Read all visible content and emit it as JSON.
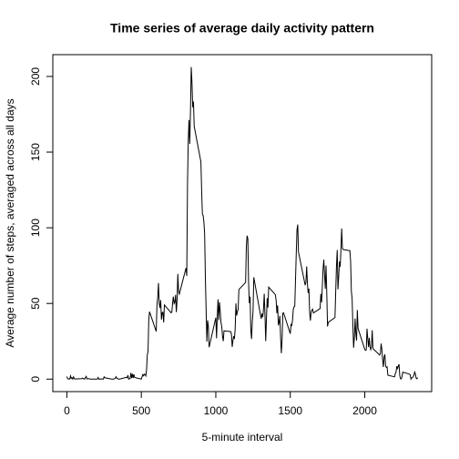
{
  "chart_data": {
    "type": "line",
    "title": "Time series of average daily activity pattern",
    "xlabel": "5-minute interval",
    "ylabel": "Average number of steps, averaged across all days",
    "color": "#000000",
    "xlim": [
      -94.2,
      2449.2
    ],
    "xticks": [
      0,
      500,
      1000,
      1500,
      2000
    ],
    "ylim": [
      -8.25,
      214.4
    ],
    "yticks": [
      0,
      50,
      100,
      150,
      200
    ],
    "x": [
      0,
      5,
      10,
      15,
      20,
      25,
      30,
      35,
      40,
      45,
      50,
      55,
      100,
      105,
      110,
      115,
      120,
      125,
      130,
      135,
      140,
      145,
      150,
      155,
      200,
      205,
      210,
      215,
      220,
      225,
      230,
      235,
      240,
      245,
      250,
      255,
      300,
      305,
      310,
      315,
      320,
      325,
      330,
      335,
      340,
      345,
      350,
      355,
      400,
      405,
      410,
      415,
      420,
      425,
      430,
      435,
      440,
      445,
      450,
      455,
      500,
      505,
      510,
      515,
      520,
      525,
      530,
      535,
      540,
      545,
      550,
      555,
      600,
      605,
      610,
      615,
      620,
      625,
      630,
      635,
      640,
      645,
      650,
      655,
      700,
      705,
      710,
      715,
      720,
      725,
      730,
      735,
      740,
      745,
      750,
      755,
      800,
      805,
      810,
      815,
      820,
      825,
      830,
      835,
      840,
      845,
      850,
      855,
      900,
      905,
      910,
      915,
      920,
      925,
      930,
      935,
      940,
      945,
      950,
      955,
      1000,
      1005,
      1010,
      1015,
      1020,
      1025,
      1030,
      1035,
      1040,
      1045,
      1050,
      1055,
      1100,
      1105,
      1110,
      1115,
      1120,
      1125,
      1130,
      1135,
      1140,
      1145,
      1150,
      1155,
      1200,
      1205,
      1210,
      1215,
      1220,
      1225,
      1230,
      1235,
      1240,
      1245,
      1250,
      1255,
      1300,
      1305,
      1310,
      1315,
      1320,
      1325,
      1330,
      1335,
      1340,
      1345,
      1350,
      1355,
      1400,
      1405,
      1410,
      1415,
      1420,
      1425,
      1430,
      1435,
      1440,
      1445,
      1450,
      1455,
      1500,
      1505,
      1510,
      1515,
      1520,
      1525,
      1530,
      1535,
      1540,
      1545,
      1550,
      1555,
      1600,
      1605,
      1610,
      1615,
      1620,
      1625,
      1630,
      1635,
      1640,
      1645,
      1650,
      1655,
      1700,
      1705,
      1710,
      1715,
      1720,
      1725,
      1730,
      1735,
      1740,
      1745,
      1750,
      1755,
      1800,
      1805,
      1810,
      1815,
      1820,
      1825,
      1830,
      1835,
      1840,
      1845,
      1850,
      1855,
      1900,
      1905,
      1910,
      1915,
      1920,
      1925,
      1930,
      1935,
      1940,
      1945,
      1950,
      1955,
      2000,
      2005,
      2010,
      2015,
      2020,
      2025,
      2030,
      2035,
      2040,
      2045,
      2050,
      2055,
      2100,
      2105,
      2110,
      2115,
      2120,
      2125,
      2130,
      2135,
      2140,
      2145,
      2150,
      2155,
      2200,
      2205,
      2210,
      2215,
      2220,
      2225,
      2230,
      2235,
      2240,
      2245,
      2250,
      2255,
      2300,
      2305,
      2310,
      2315,
      2320,
      2325,
      2330,
      2335,
      2340,
      2345,
      2350,
      2355
    ],
    "values": [
      1.7,
      0.3,
      0.1,
      0.2,
      0.1,
      2.1,
      0.5,
      0.9,
      0,
      1.5,
      0.3,
      0.1,
      0.3,
      0.7,
      0.2,
      0.3,
      0,
      1.1,
      1.8,
      0.2,
      0.2,
      0.4,
      0.3,
      0,
      0,
      0,
      1.1,
      0,
      0,
      0.1,
      0,
      0.2,
      0,
      0,
      1.5,
      0.9,
      0,
      0,
      0,
      0,
      0.2,
      0.6,
      1.6,
      0.6,
      0.5,
      0.1,
      0,
      0,
      1.2,
      0.9,
      2.6,
      0,
      0.3,
      0.4,
      4.1,
      0.7,
      3.5,
      0.8,
      3.1,
      1.1,
      0,
      1.6,
      3.0,
      2.2,
      3.3,
      3,
      2.1,
      6.1,
      16,
      18.3,
      39.5,
      44.5,
      31.5,
      49.3,
      53.8,
      63.5,
      50,
      47.1,
      52.2,
      39.3,
      44,
      44.2,
      37.4,
      49.0,
      43.8,
      44.4,
      50.5,
      54.5,
      49.9,
      50.9,
      55.7,
      44.3,
      52.3,
      69.5,
      57.8,
      56.2,
      73.4,
      68.2,
      129.4,
      157.5,
      171.2,
      155.4,
      177.3,
      206.2,
      195.9,
      179.6,
      183.4,
      167,
      143.5,
      124,
      109.1,
      108.1,
      103.7,
      96,
      66.2,
      45.2,
      24.8,
      38.8,
      35,
      21.1,
      40.6,
      27,
      42.4,
      52.7,
      38.9,
      50.8,
      44.3,
      37.4,
      34.7,
      28.3,
      25.1,
      31.9,
      31.4,
      29.7,
      21.3,
      25.5,
      28.4,
      26.5,
      33.4,
      50.0,
      42.0,
      44.6,
      46.0,
      59.2,
      63.9,
      87.7,
      94.8,
      92.8,
      63.4,
      50.2,
      54.5,
      32.4,
      26.5,
      37.7,
      45.1,
      67.3,
      42.3,
      39.9,
      43.3,
      41.0,
      46.2,
      56.4,
      42.8,
      25.1,
      39.9,
      53.5,
      47.3,
      60.8,
      55.8,
      52,
      43.6,
      48.7,
      35.5,
      37.5,
      41.8,
      27.5,
      17.1,
      26.1,
      43.6,
      43.8,
      30.0,
      36.1,
      35.5,
      38.8,
      46,
      47.8,
      48.1,
      65.3,
      82.9,
      98.7,
      102.1,
      84.0,
      62.1,
      64.1,
      74.5,
      63.2,
      56.9,
      59.8,
      43.9,
      38.6,
      44.7,
      45.5,
      46.2,
      43.7,
      46.6,
      56.3,
      50.7,
      61.2,
      72.7,
      78.9,
      68.9,
      59.7,
      75.1,
      56.5,
      34.8,
      37.5,
      40.7,
      58.0,
      74.7,
      85.3,
      59.3,
      67.8,
      77.7,
      74.2,
      85.3,
      99.5,
      86.6,
      85.6,
      84.9,
      77.8,
      58.0,
      53.4,
      36.3,
      20.7,
      27.4,
      40.0,
      30.2,
      25.5,
      45.7,
      33.5,
      19.6,
      19.0,
      19.3,
      33.3,
      26.8,
      21.2,
      27.3,
      21.3,
      19.5,
      21.3,
      32.3,
      20.2,
      15.9,
      17.2,
      23.5,
      19.2,
      12.5,
      8.0,
      14.7,
      16.3,
      8.7,
      7.8,
      8.1,
      2.6,
      1.5,
      3.7,
      4.8,
      8.5,
      7.1,
      8.7,
      9.8,
      2.2,
      0.3,
      0.1,
      1.6,
      4.6,
      3.3,
      2.8,
      0,
      0.8,
      1.0,
      1.6,
      2.6,
      4.7,
      3.3,
      0.6,
      0.2,
      1.1
    ]
  }
}
